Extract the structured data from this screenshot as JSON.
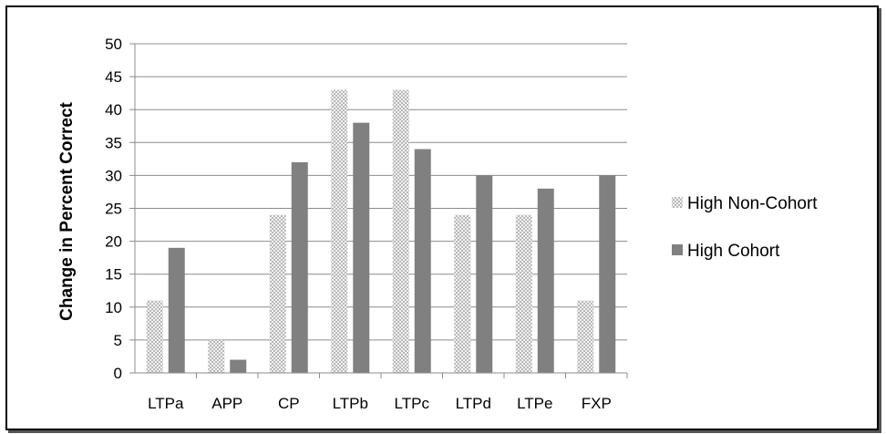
{
  "chart_data": {
    "type": "bar",
    "title": "",
    "xlabel": "",
    "ylabel": "Change in Percent Correct",
    "ylim": [
      0,
      50
    ],
    "ytick_step": 5,
    "grid": true,
    "legend_position": "right",
    "categories": [
      "LTPa",
      "APP",
      "CP",
      "LTPb",
      "LTPc",
      "LTPd",
      "LTPe",
      "FXP"
    ],
    "series": [
      {
        "name": "High Non-Cohort",
        "pattern": "checkered",
        "color": "#d9d9d9",
        "values": [
          11,
          5,
          24,
          43,
          43,
          24,
          24,
          11
        ]
      },
      {
        "name": "High Cohort",
        "pattern": "solid",
        "color": "#808080",
        "values": [
          19,
          2,
          32,
          38,
          34,
          30,
          28,
          30
        ]
      }
    ]
  }
}
